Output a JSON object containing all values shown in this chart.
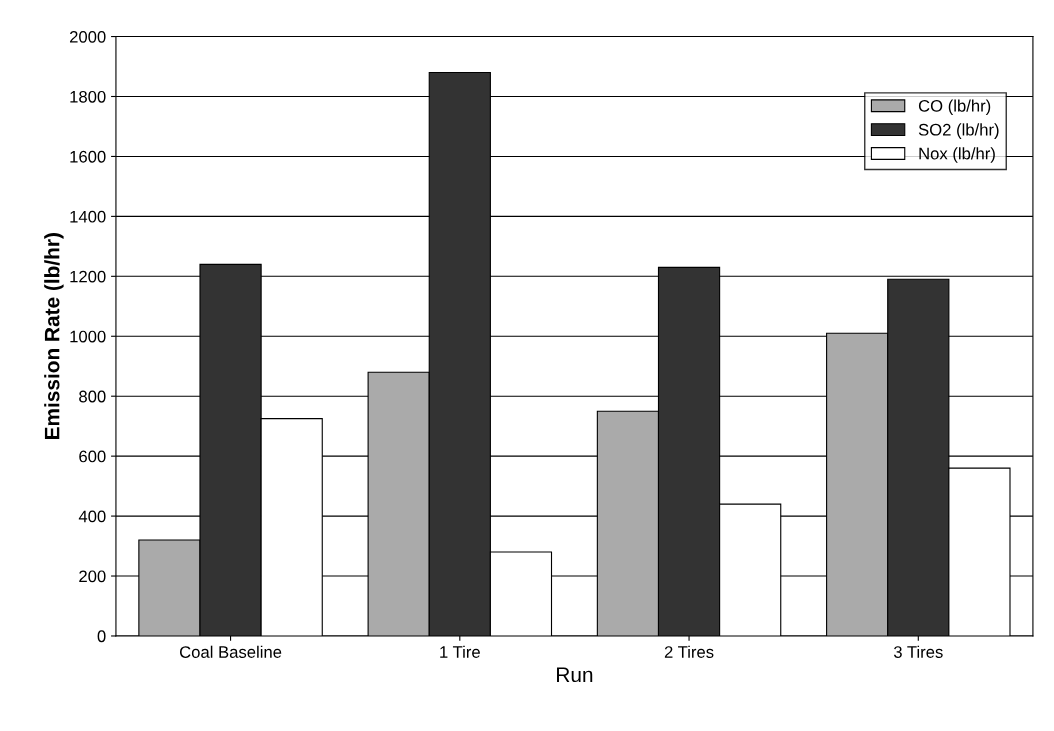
{
  "chart_data": {
    "type": "bar",
    "xlabel": "Run",
    "ylabel": "Emission Rate (lb/hr)",
    "categories": [
      "Coal Baseline",
      "1 Tire",
      "2 Tires",
      "3 Tires"
    ],
    "series": [
      {
        "name": "CO (lb/hr)",
        "color": "#aaaaaa",
        "values": [
          320,
          880,
          750,
          1010
        ]
      },
      {
        "name": "SO2 (lb/hr)",
        "color": "#333333",
        "values": [
          1240,
          1880,
          1230,
          1190
        ]
      },
      {
        "name": "Nox (lb/hr)",
        "color": "#ffffff",
        "values": [
          725,
          280,
          440,
          560
        ]
      }
    ],
    "ylim": [
      0,
      2000
    ],
    "yticks": [
      0,
      200,
      400,
      600,
      800,
      1000,
      1200,
      1400,
      1600,
      1800,
      2000
    ],
    "grid": "y",
    "legend": "top right"
  }
}
